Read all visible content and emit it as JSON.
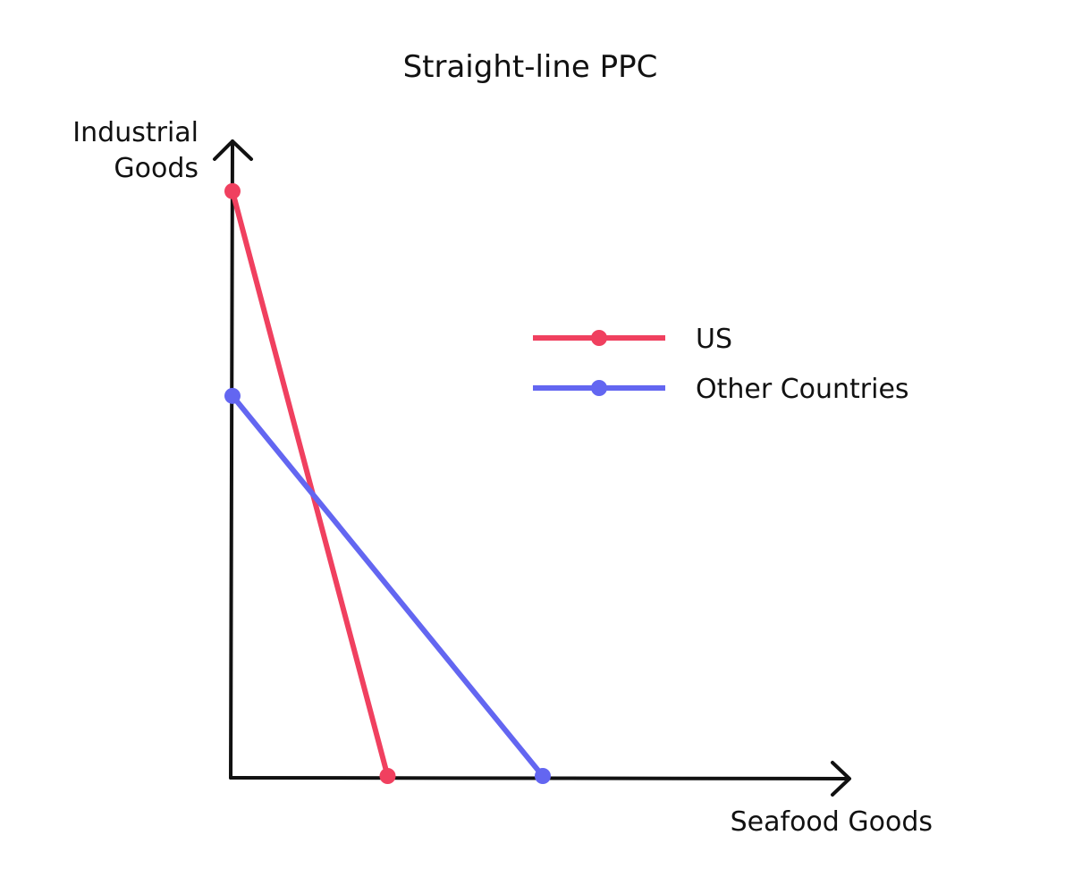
{
  "chart_data": {
    "type": "line",
    "title": "Straight-line PPC",
    "xlabel": "Seafood Goods",
    "ylabel_lines": [
      "Industrial",
      "Goods"
    ],
    "xlim": [
      0,
      10
    ],
    "ylim": [
      0,
      10.9
    ],
    "grid": false,
    "legend_position": "right",
    "series": [
      {
        "name": "US",
        "color": "#f0405f",
        "points": [
          [
            0,
            10
          ],
          [
            2.5,
            0
          ]
        ]
      },
      {
        "name": "Other Countries",
        "color": "#6366f1",
        "points": [
          [
            0,
            6.5
          ],
          [
            5,
            0
          ]
        ]
      }
    ]
  }
}
